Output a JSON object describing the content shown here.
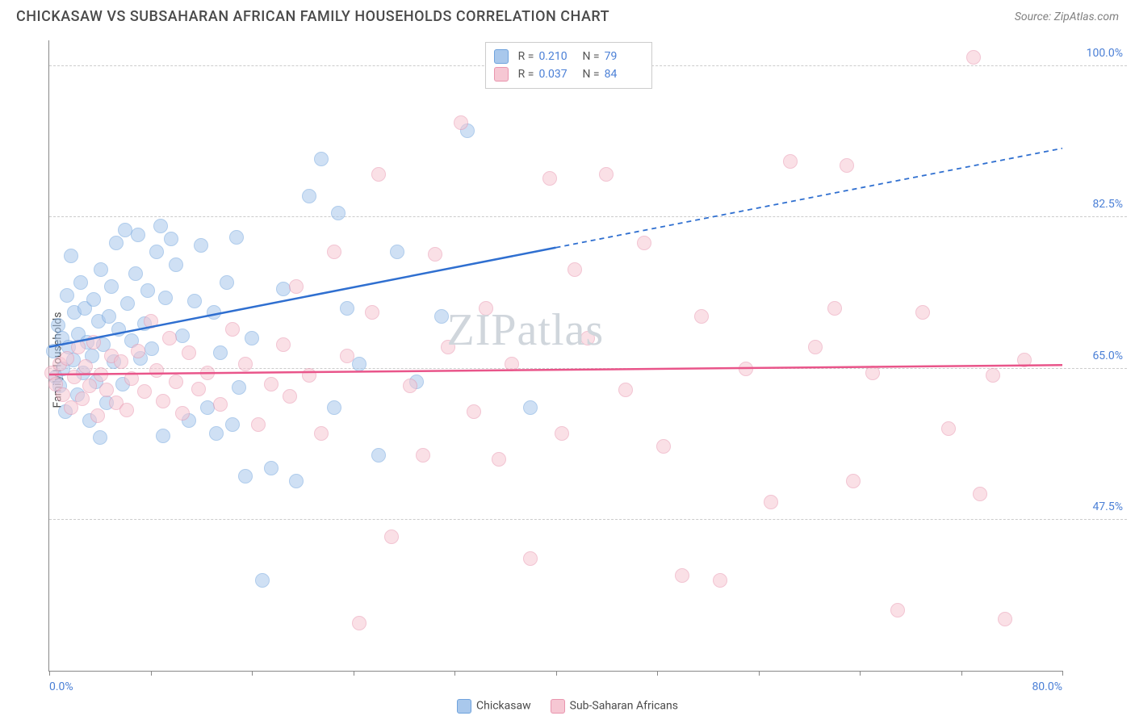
{
  "title": "CHICKASAW VS SUBSAHARAN AFRICAN FAMILY HOUSEHOLDS CORRELATION CHART",
  "source_prefix": "Source: ",
  "source_name": "ZipAtlas.com",
  "ylabel": "Family Households",
  "watermark": "ZIPatlas",
  "chart": {
    "type": "scatter",
    "xlim": [
      0,
      80
    ],
    "ylim": [
      30,
      103
    ],
    "y_ticks": [
      47.5,
      65.0,
      82.5,
      100.0
    ],
    "y_tick_labels": [
      "47.5%",
      "65.0%",
      "82.5%",
      "100.0%"
    ],
    "x_ticks": [
      0,
      40,
      80
    ],
    "x_tick_labels": [
      "0.0%",
      "",
      "80.0%"
    ],
    "x_minor_ticks": [
      0,
      8,
      16,
      24,
      32,
      40,
      48,
      56,
      64,
      72,
      80
    ],
    "background_color": "#ffffff",
    "grid_color": "#cccccc",
    "axis_color": "#888888",
    "marker_radius": 9,
    "marker_opacity": 0.55,
    "series": [
      {
        "name": "Chickasaw",
        "fill_color": "#a9c8ec",
        "stroke_color": "#6fa3dd",
        "line_color": "#2f6fd0",
        "R": "0.210",
        "N": "79",
        "trend": {
          "x1": 0,
          "y1": 67.5,
          "x2": 40,
          "y2": 79,
          "x2_ext": 80,
          "y2_ext": 90.5
        },
        "points": [
          [
            0.3,
            67
          ],
          [
            0.5,
            64
          ],
          [
            0.7,
            70
          ],
          [
            0.8,
            63
          ],
          [
            1.0,
            68.5
          ],
          [
            1.1,
            65
          ],
          [
            1.3,
            60
          ],
          [
            1.4,
            73.5
          ],
          [
            1.5,
            67.5
          ],
          [
            1.7,
            78
          ],
          [
            1.9,
            66
          ],
          [
            2.0,
            71.5
          ],
          [
            2.2,
            62
          ],
          [
            2.3,
            69
          ],
          [
            2.5,
            75
          ],
          [
            2.7,
            64.5
          ],
          [
            2.8,
            72
          ],
          [
            3.0,
            68
          ],
          [
            3.2,
            59
          ],
          [
            3.4,
            66.5
          ],
          [
            3.5,
            73
          ],
          [
            3.7,
            63.5
          ],
          [
            3.9,
            70.5
          ],
          [
            4.1,
            76.5
          ],
          [
            4.3,
            67.8
          ],
          [
            4.5,
            61
          ],
          [
            4.7,
            71
          ],
          [
            4.9,
            74.5
          ],
          [
            5.1,
            65.8
          ],
          [
            5.3,
            79.5
          ],
          [
            5.5,
            69.5
          ],
          [
            5.8,
            63.2
          ],
          [
            6.0,
            81
          ],
          [
            6.2,
            72.5
          ],
          [
            6.5,
            68.2
          ],
          [
            6.8,
            76
          ],
          [
            7.0,
            80.5
          ],
          [
            7.2,
            66.2
          ],
          [
            7.5,
            70.2
          ],
          [
            7.8,
            74
          ],
          [
            8.1,
            67.3
          ],
          [
            8.5,
            78.5
          ],
          [
            8.8,
            81.5
          ],
          [
            9.2,
            73.2
          ],
          [
            9.6,
            80
          ],
          [
            10.0,
            77
          ],
          [
            10.5,
            68.8
          ],
          [
            11.0,
            59
          ],
          [
            11.5,
            72.8
          ],
          [
            12.0,
            79.3
          ],
          [
            12.5,
            60.5
          ],
          [
            13.0,
            71.5
          ],
          [
            13.2,
            57.5
          ],
          [
            13.5,
            66.8
          ],
          [
            14.0,
            75
          ],
          [
            14.5,
            58.5
          ],
          [
            15.0,
            62.8
          ],
          [
            15.5,
            52.5
          ],
          [
            16.0,
            68.5
          ],
          [
            16.8,
            40.5
          ],
          [
            17.5,
            53.5
          ],
          [
            18.5,
            74.2
          ],
          [
            19.5,
            52
          ],
          [
            20.5,
            85
          ],
          [
            21.5,
            89.3
          ],
          [
            22.5,
            60.5
          ],
          [
            22.8,
            83
          ],
          [
            23.5,
            72
          ],
          [
            24.5,
            65.5
          ],
          [
            26.0,
            55
          ],
          [
            27.5,
            78.5
          ],
          [
            29.0,
            63.5
          ],
          [
            31.0,
            71
          ],
          [
            33.0,
            92.5
          ],
          [
            36.0,
            100.8
          ],
          [
            38.0,
            60.5
          ],
          [
            4.0,
            57
          ],
          [
            9.0,
            57.2
          ],
          [
            14.8,
            80.2
          ]
        ]
      },
      {
        "name": "Sub-Saharan Africans",
        "fill_color": "#f6c7d3",
        "stroke_color": "#e995ae",
        "line_color": "#e9558a",
        "R": "0.037",
        "N": "84",
        "trend": {
          "x1": 0,
          "y1": 64.3,
          "x2": 80,
          "y2": 65.4,
          "x2_ext": 80,
          "y2_ext": 65.4
        },
        "points": [
          [
            0.2,
            64.5
          ],
          [
            0.5,
            63.2
          ],
          [
            0.8,
            65.5
          ],
          [
            1.1,
            62
          ],
          [
            1.4,
            66.2
          ],
          [
            1.7,
            60.5
          ],
          [
            2.0,
            64
          ],
          [
            2.3,
            67.5
          ],
          [
            2.6,
            61.5
          ],
          [
            2.9,
            65.2
          ],
          [
            3.2,
            63
          ],
          [
            3.5,
            68
          ],
          [
            3.8,
            59.5
          ],
          [
            4.1,
            64.3
          ],
          [
            4.5,
            62.5
          ],
          [
            4.9,
            66.5
          ],
          [
            5.3,
            61
          ],
          [
            5.7,
            65.8
          ],
          [
            6.1,
            60.2
          ],
          [
            6.5,
            63.8
          ],
          [
            7.0,
            67
          ],
          [
            7.5,
            62.3
          ],
          [
            8.0,
            70.5
          ],
          [
            8.5,
            64.8
          ],
          [
            9.0,
            61.2
          ],
          [
            9.5,
            68.5
          ],
          [
            10.0,
            63.5
          ],
          [
            10.5,
            59.8
          ],
          [
            11.0,
            66.8
          ],
          [
            11.8,
            62.6
          ],
          [
            12.5,
            64.5
          ],
          [
            13.5,
            60.8
          ],
          [
            14.5,
            69.5
          ],
          [
            15.5,
            65.5
          ],
          [
            16.5,
            58.5
          ],
          [
            17.5,
            63.2
          ],
          [
            18.5,
            67.8
          ],
          [
            19.0,
            61.8
          ],
          [
            19.5,
            74.5
          ],
          [
            20.5,
            64.2
          ],
          [
            21.5,
            57.5
          ],
          [
            22.5,
            78.5
          ],
          [
            23.5,
            66.5
          ],
          [
            24.5,
            35.5
          ],
          [
            25.5,
            71.5
          ],
          [
            26.0,
            87.5
          ],
          [
            27.0,
            45.5
          ],
          [
            28.5,
            63
          ],
          [
            29.5,
            55
          ],
          [
            30.5,
            78.2
          ],
          [
            31.5,
            67.5
          ],
          [
            32.5,
            93.5
          ],
          [
            33.5,
            60
          ],
          [
            34.5,
            72
          ],
          [
            35.5,
            54.5
          ],
          [
            36.5,
            65.5
          ],
          [
            38.0,
            43
          ],
          [
            39.5,
            87
          ],
          [
            40.5,
            57.5
          ],
          [
            41.5,
            76.5
          ],
          [
            42.5,
            68.5
          ],
          [
            44.0,
            87.5
          ],
          [
            45.5,
            62.5
          ],
          [
            47.0,
            79.5
          ],
          [
            48.5,
            56
          ],
          [
            50.0,
            41
          ],
          [
            51.5,
            71
          ],
          [
            53.0,
            40.5
          ],
          [
            55.0,
            65
          ],
          [
            57.0,
            49.5
          ],
          [
            58.5,
            89
          ],
          [
            60.5,
            67.5
          ],
          [
            62.0,
            72
          ],
          [
            63.5,
            52
          ],
          [
            65.0,
            64.5
          ],
          [
            67.0,
            37
          ],
          [
            69.0,
            71.5
          ],
          [
            71.0,
            58
          ],
          [
            73.0,
            101
          ],
          [
            73.5,
            50.5
          ],
          [
            74.5,
            64.2
          ],
          [
            75.5,
            36
          ],
          [
            77.0,
            66
          ],
          [
            63.0,
            88.5
          ]
        ]
      }
    ]
  },
  "legend_bottom": [
    {
      "label": "Chickasaw",
      "fill": "#a9c8ec",
      "stroke": "#6fa3dd"
    },
    {
      "label": "Sub-Saharan Africans",
      "fill": "#f6c7d3",
      "stroke": "#e995ae"
    }
  ]
}
